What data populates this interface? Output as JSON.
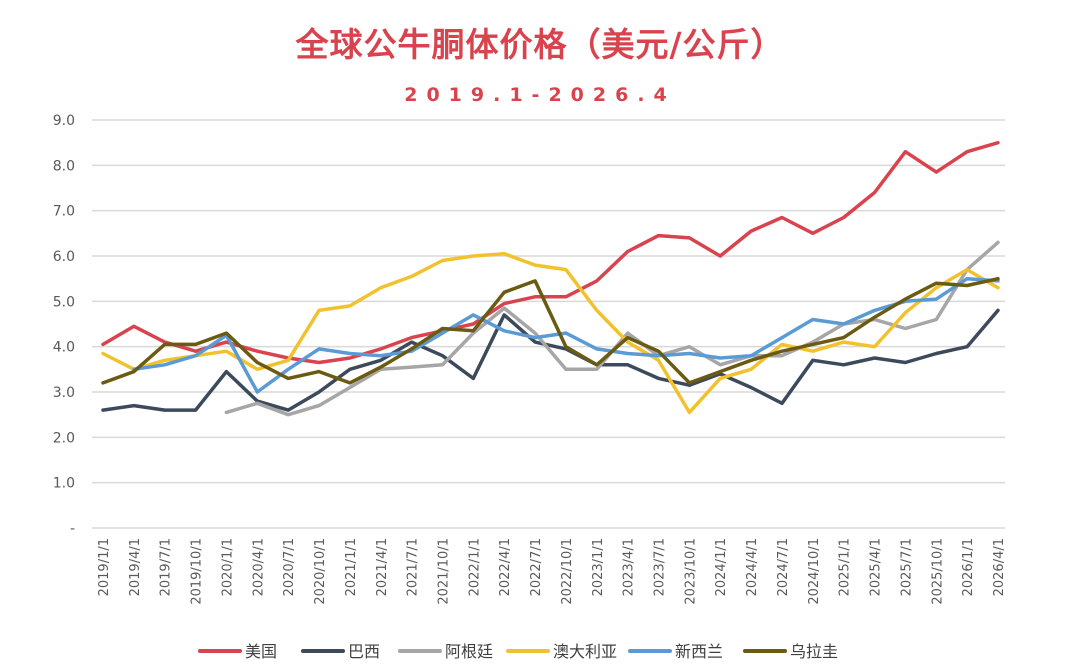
{
  "chart_data": {
    "type": "line",
    "title": "全球公牛胴体价格（美元/公斤）",
    "subtitle": "2019.1-2026.4",
    "xlabel": "",
    "ylabel": "",
    "ylim": [
      0,
      9
    ],
    "yticks": [
      {
        "value": 0,
        "label": "-"
      },
      {
        "value": 1,
        "label": "1.0"
      },
      {
        "value": 2,
        "label": "2.0"
      },
      {
        "value": 3,
        "label": "3.0"
      },
      {
        "value": 4,
        "label": "4.0"
      },
      {
        "value": 5,
        "label": "5.0"
      },
      {
        "value": 6,
        "label": "6.0"
      },
      {
        "value": 7,
        "label": "7.0"
      },
      {
        "value": 8,
        "label": "8.0"
      },
      {
        "value": 9,
        "label": "9.0"
      }
    ],
    "grid": true,
    "legend_position": "bottom",
    "categories": [
      "2019/1/1",
      "2019/4/1",
      "2019/7/1",
      "2019/10/1",
      "2020/1/1",
      "2020/4/1",
      "2020/7/1",
      "2020/10/1",
      "2021/1/1",
      "2021/4/1",
      "2021/7/1",
      "2021/10/1",
      "2022/1/1",
      "2022/4/1",
      "2022/7/1",
      "2022/10/1",
      "2023/1/1",
      "2023/4/1",
      "2023/7/1",
      "2023/10/1",
      "2024/1/1",
      "2024/4/1",
      "2024/7/1",
      "2024/10/1",
      "2025/1/1",
      "2025/4/1",
      "2025/7/1",
      "2025/10/1",
      "2026/1/1",
      "2026/4/1"
    ],
    "series": [
      {
        "name": "美国",
        "color": "#d9434e",
        "values": [
          4.05,
          4.45,
          4.1,
          3.9,
          4.1,
          3.9,
          3.75,
          3.65,
          3.75,
          3.95,
          4.2,
          4.35,
          4.5,
          4.95,
          5.1,
          5.1,
          5.45,
          6.1,
          6.45,
          6.4,
          6.0,
          6.55,
          6.85,
          6.5,
          6.85,
          7.4,
          8.3,
          7.85,
          8.3,
          8.5
        ]
      },
      {
        "name": "巴西",
        "color": "#3d4a5c",
        "values": [
          2.6,
          2.7,
          2.6,
          2.6,
          3.45,
          2.8,
          2.6,
          3.0,
          3.5,
          3.7,
          4.1,
          3.8,
          3.3,
          4.7,
          4.1,
          3.95,
          3.6,
          3.6,
          3.3,
          3.15,
          3.4,
          3.1,
          2.75,
          3.7,
          3.6,
          3.75,
          3.65,
          3.85,
          4.0,
          4.8
        ]
      },
      {
        "name": "阿根廷",
        "color": "#a6a6a6",
        "values": [
          null,
          null,
          null,
          null,
          2.55,
          2.75,
          2.5,
          2.7,
          3.1,
          3.5,
          3.55,
          3.6,
          4.3,
          4.85,
          4.3,
          3.5,
          3.5,
          4.3,
          3.8,
          4.0,
          3.6,
          3.8,
          3.8,
          4.1,
          4.5,
          4.6,
          4.4,
          4.6,
          5.7,
          6.3
        ]
      },
      {
        "name": "澳大利亚",
        "color": "#f2c12e",
        "values": [
          3.85,
          3.5,
          3.7,
          3.8,
          3.9,
          3.5,
          3.7,
          4.8,
          4.9,
          5.3,
          5.55,
          5.9,
          6.0,
          6.05,
          5.8,
          5.7,
          4.8,
          4.1,
          3.7,
          2.55,
          3.3,
          3.5,
          4.05,
          3.9,
          4.1,
          4.0,
          4.75,
          5.3,
          5.7,
          5.3
        ]
      },
      {
        "name": "新西兰",
        "color": "#5b9bd5",
        "values": [
          null,
          3.5,
          3.6,
          3.8,
          4.25,
          3.0,
          3.5,
          3.95,
          3.85,
          3.8,
          3.9,
          4.3,
          4.7,
          4.35,
          4.2,
          4.3,
          3.95,
          3.85,
          3.8,
          3.85,
          3.75,
          3.8,
          4.2,
          4.6,
          4.5,
          4.8,
          5.0,
          5.05,
          5.5,
          5.45
        ]
      },
      {
        "name": "乌拉圭",
        "color": "#6b5a12",
        "values": [
          3.2,
          3.45,
          4.05,
          4.05,
          4.3,
          3.65,
          3.3,
          3.45,
          3.2,
          3.55,
          3.95,
          4.4,
          4.35,
          5.2,
          5.45,
          4.0,
          3.6,
          4.2,
          3.9,
          3.2,
          3.45,
          3.7,
          3.9,
          4.05,
          4.2,
          4.65,
          5.05,
          5.4,
          5.35,
          5.5
        ]
      }
    ]
  }
}
